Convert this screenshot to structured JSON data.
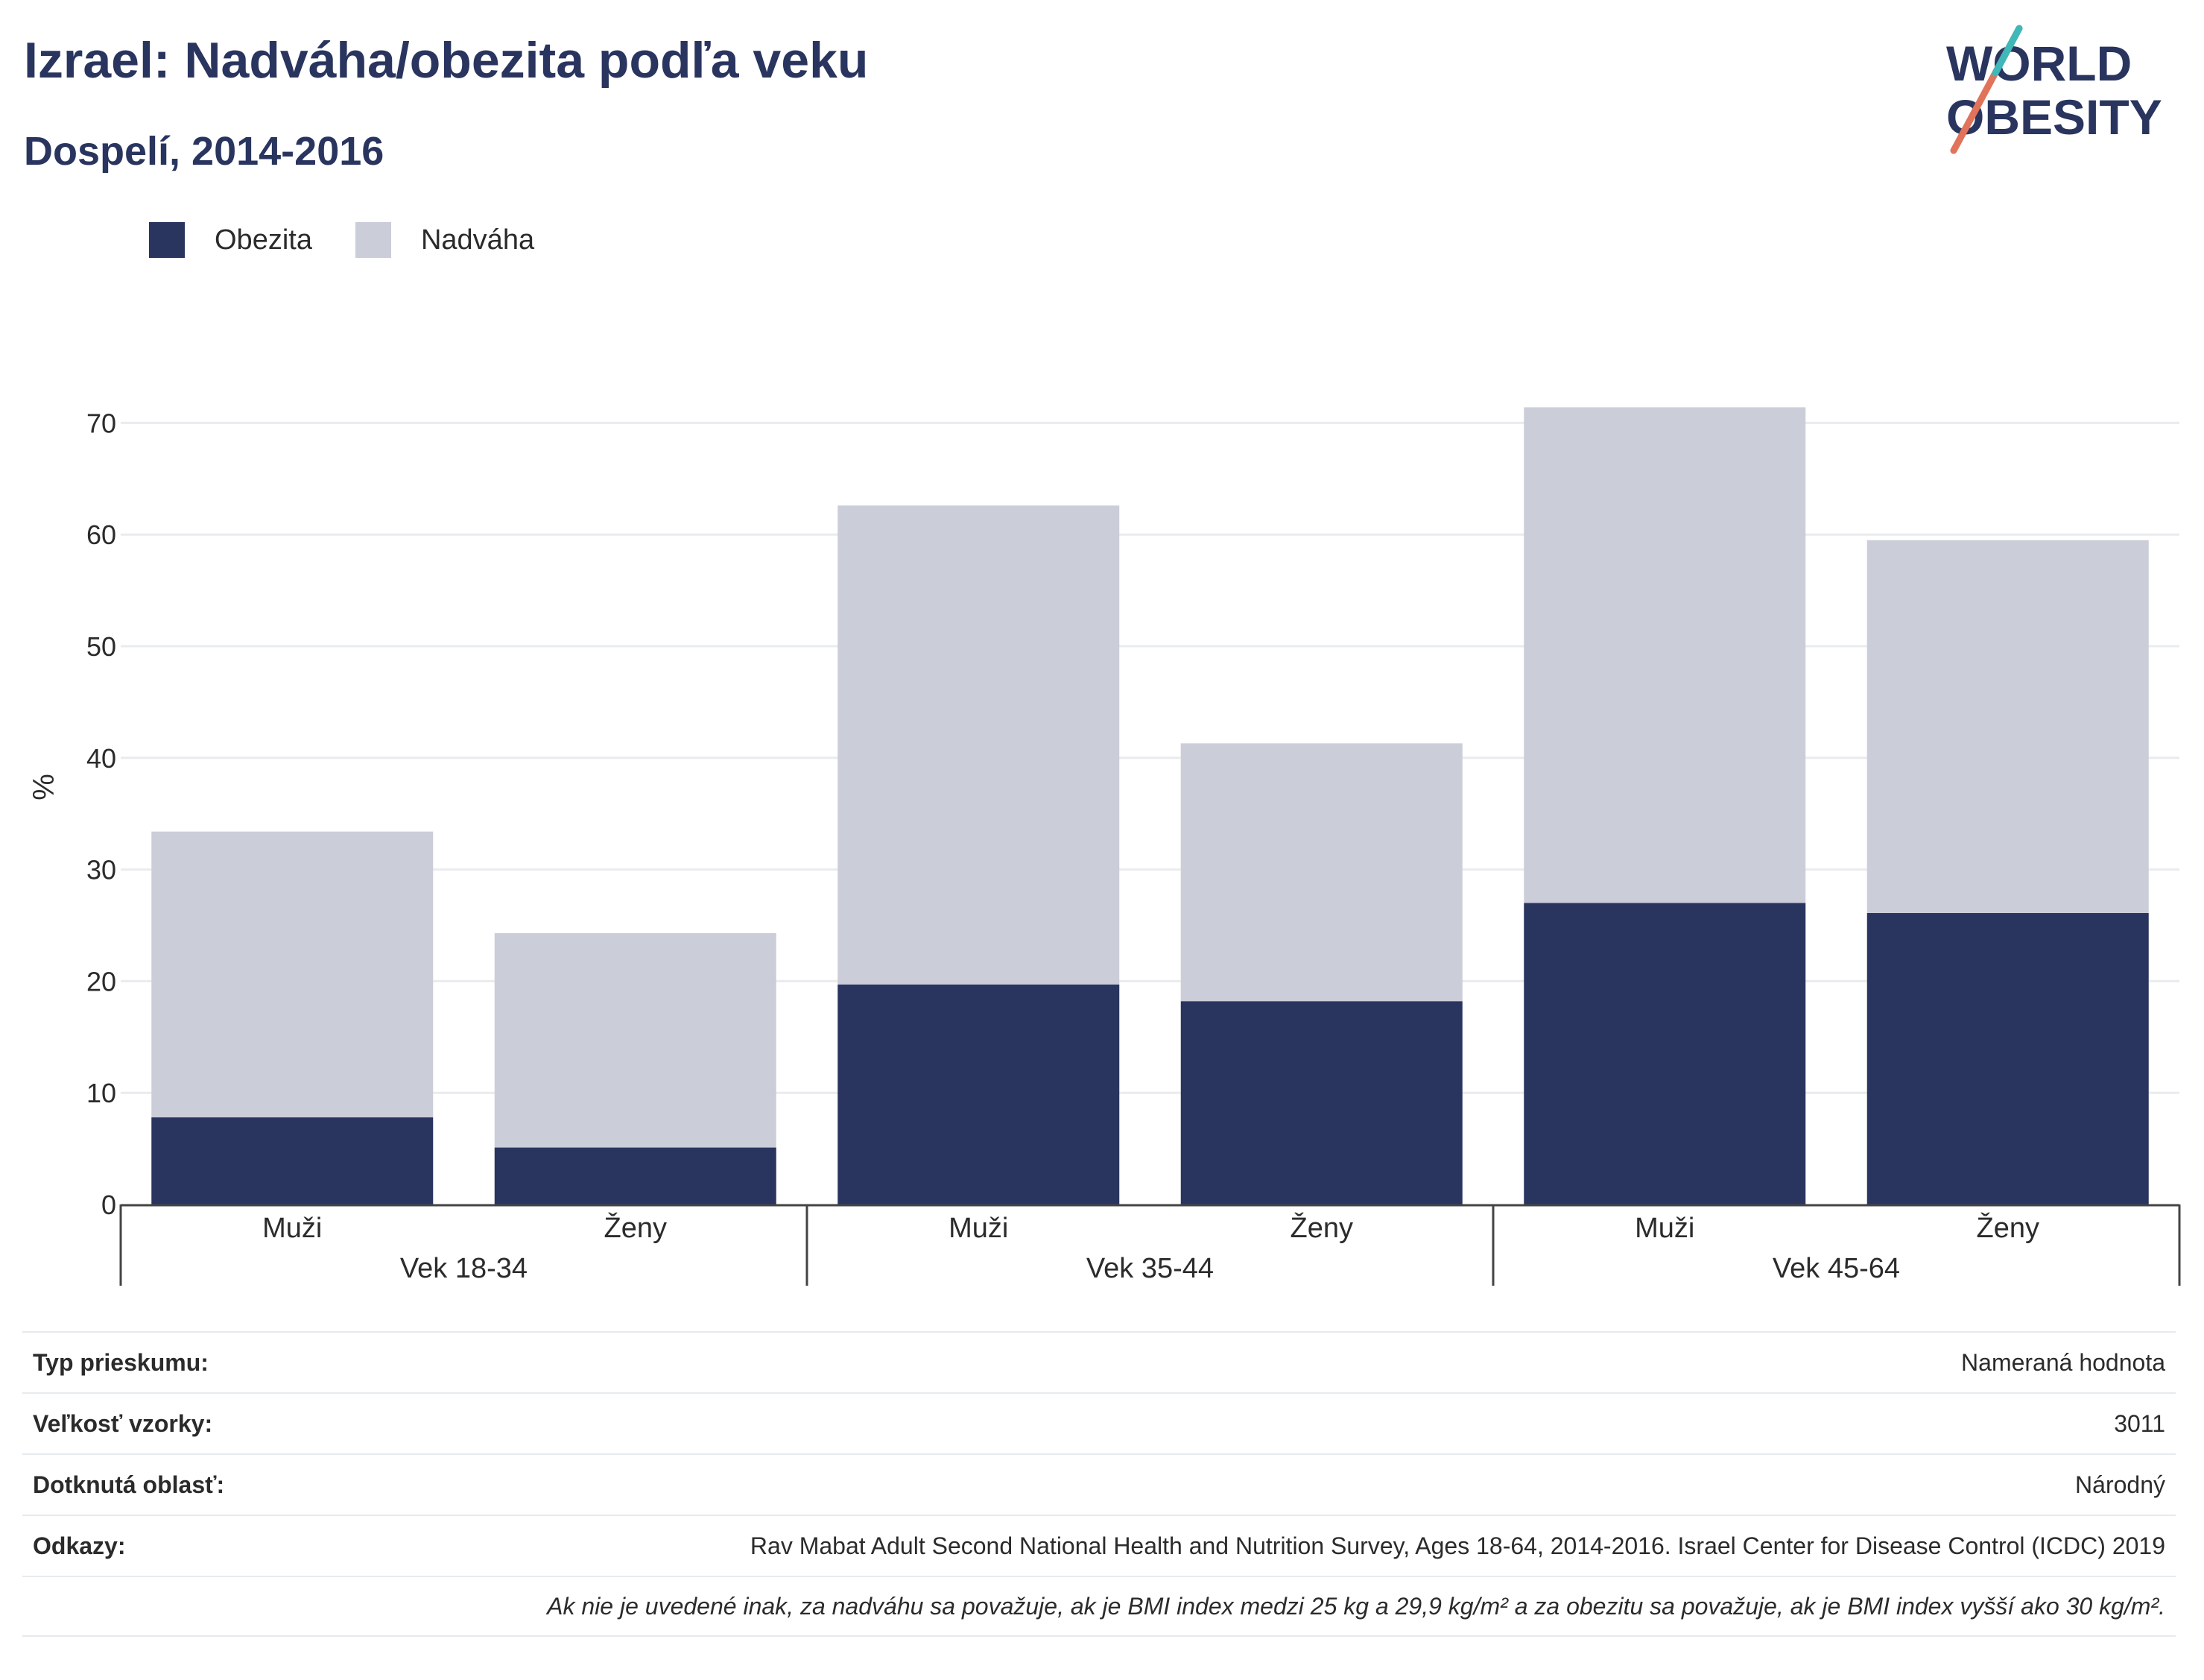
{
  "header": {
    "title": "Izrael: Nadváha/obezita podľa veku",
    "subtitle": "Dospelí, 2014-2016"
  },
  "logo": {
    "line1": "WORLD",
    "line2": "OBESITY"
  },
  "colors": {
    "obesity": "#29355f",
    "overweight": "#cbcdd9",
    "text": "#29355f",
    "grid": "#e9ecef"
  },
  "chart_data": {
    "type": "bar",
    "stacked": true,
    "ylabel": "%",
    "ylim": [
      0,
      75
    ],
    "yticks": [
      0,
      10,
      20,
      30,
      40,
      50,
      60,
      70
    ],
    "grid": true,
    "legend_position": "top-left",
    "groups": [
      "Vek 18-34",
      "Vek 35-44",
      "Vek 45-64"
    ],
    "categories": [
      "Muži",
      "Ženy",
      "Muži",
      "Ženy",
      "Muži",
      "Ženy"
    ],
    "group_index": [
      0,
      0,
      1,
      1,
      2,
      2
    ],
    "series": [
      {
        "name": "Obezita",
        "values": [
          7.8,
          5.1,
          19.7,
          18.2,
          27.0,
          26.1
        ]
      },
      {
        "name": "Nadváha",
        "values": [
          25.6,
          19.2,
          42.9,
          23.1,
          44.4,
          33.4
        ]
      }
    ]
  },
  "info": {
    "rows": [
      {
        "label": "Typ prieskumu:",
        "value": "Nameraná hodnota"
      },
      {
        "label": "Veľkosť vzorky:",
        "value": "3011"
      },
      {
        "label": "Dotknutá oblasť:",
        "value": "Národný"
      },
      {
        "label": "Odkazy:",
        "value": "Rav Mabat Adult Second National Health and Nutrition Survey, Ages 18-64, 2014-2016. Israel Center for Disease Control (ICDC) 2019"
      }
    ],
    "note": "Ak nie je uvedené inak, za nadváhu sa považuje, ak je BMI index medzi 25 kg a 29,9 kg/m² a za obezitu sa považuje, ak je BMI index vyšší ako 30 kg/m²."
  }
}
